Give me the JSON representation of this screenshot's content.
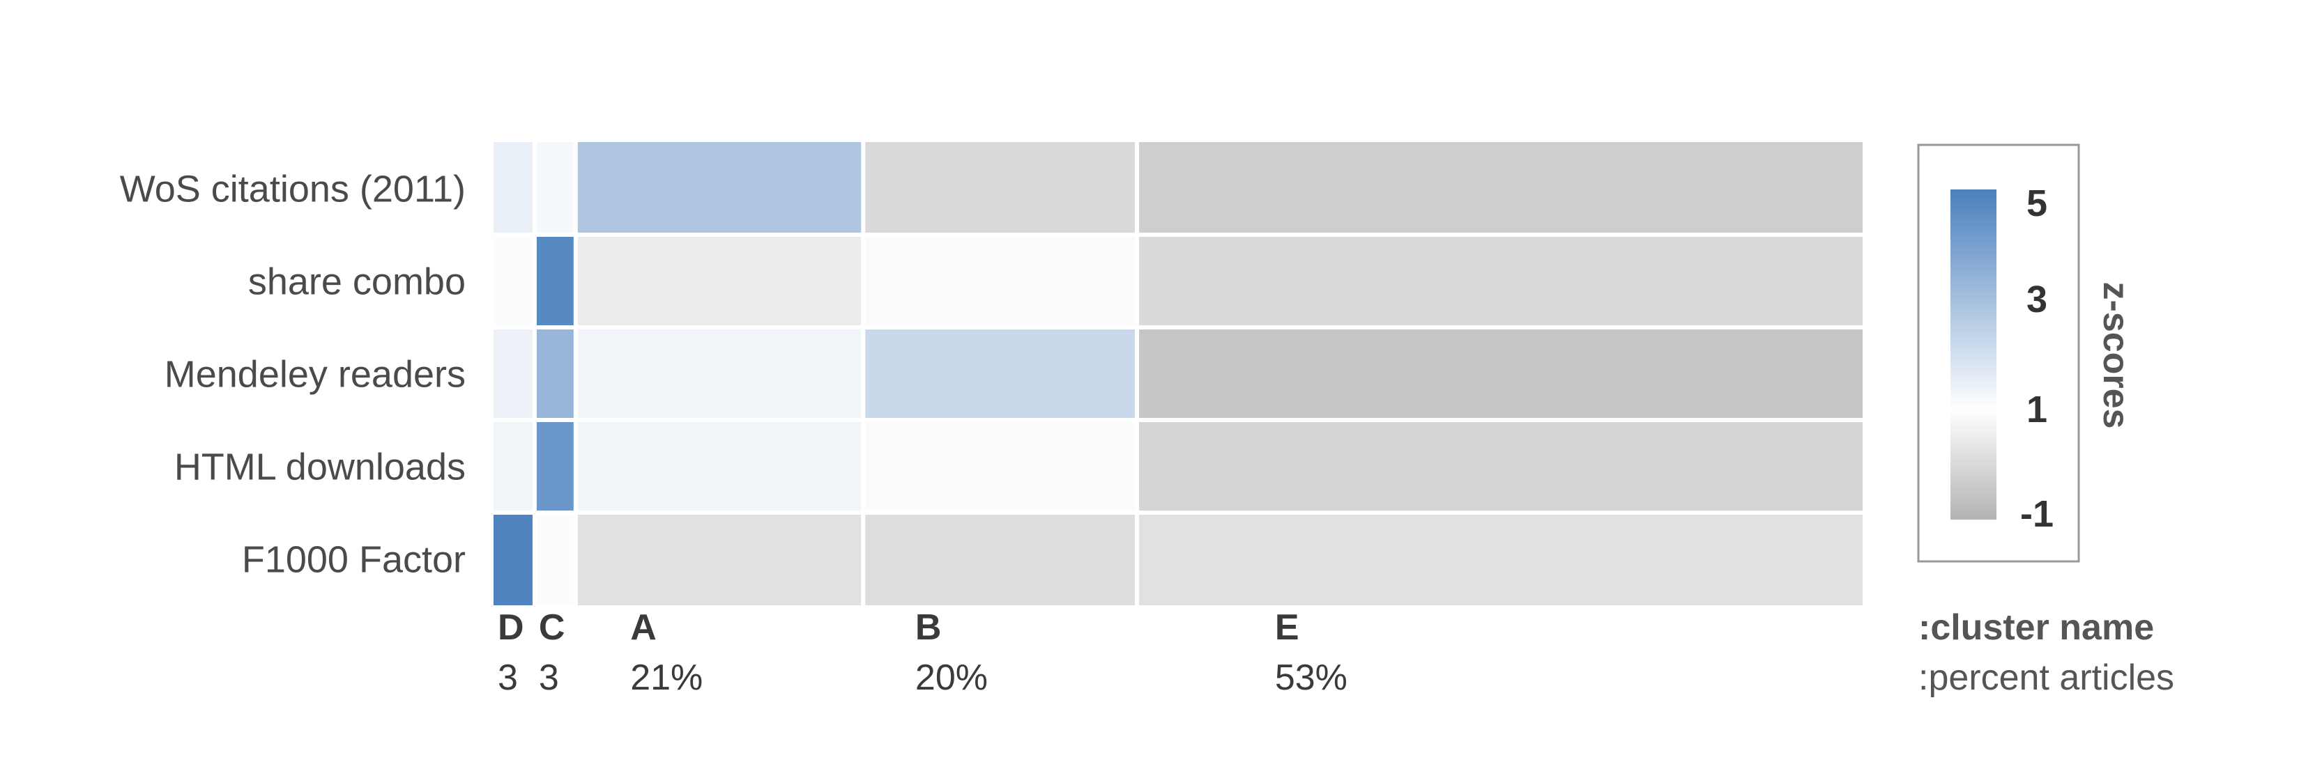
{
  "chart_data": {
    "type": "heatmap",
    "rows": [
      "WoS citations (2011)",
      "share combo",
      "Mendeley readers",
      "HTML downloads",
      "F1000 Factor"
    ],
    "clusters": [
      {
        "name": "D",
        "percent": "3"
      },
      {
        "name": "C",
        "percent": "3"
      },
      {
        "name": "A",
        "percent": "21%"
      },
      {
        "name": "B",
        "percent": "20%"
      },
      {
        "name": "E",
        "percent": "53%"
      }
    ],
    "column_widths_percent": [
      3,
      3,
      21,
      20,
      53
    ],
    "z_scores": [
      [
        1.5,
        1.2,
        2.8,
        0.0,
        -0.3
      ],
      [
        1.1,
        4.7,
        0.5,
        0.9,
        0.0
      ],
      [
        1.4,
        3.3,
        1.3,
        2.2,
        -0.5
      ],
      [
        1.3,
        4.3,
        1.3,
        0.9,
        -0.1
      ],
      [
        4.9,
        1.1,
        0.2,
        0.1,
        0.2
      ]
    ],
    "legend": {
      "title": "z-scores",
      "ticks": [
        "5",
        "3",
        "1",
        "-1"
      ],
      "range": [
        -1,
        5
      ],
      "colors": {
        "high": "#4a80bd",
        "mid": "#ffffff",
        "low": "#b3b3b3"
      }
    },
    "footer": {
      "name_label": ":cluster name",
      "percent_label": ":percent articles"
    }
  }
}
